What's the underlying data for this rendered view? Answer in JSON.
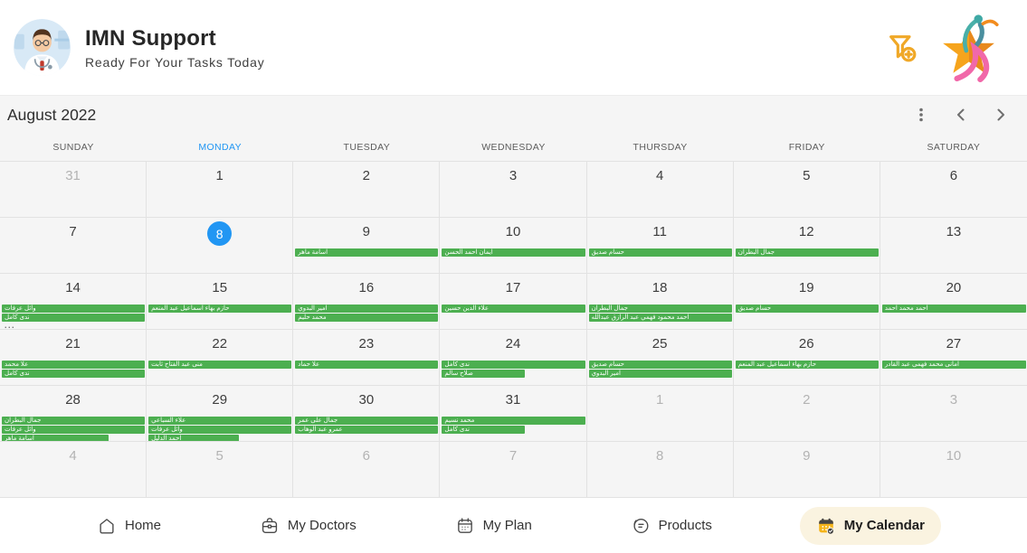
{
  "header": {
    "app_title": "IMN Support",
    "app_subtitle": "Ready For Your Tasks Today"
  },
  "calendar": {
    "month_title": "August 2022",
    "weekdays": [
      "SUNDAY",
      "MONDAY",
      "TUESDAY",
      "WEDNESDAY",
      "THURSDAY",
      "FRIDAY",
      "SATURDAY"
    ],
    "active_weekday_index": 1,
    "more_indicator": "...",
    "weeks": [
      [
        {
          "day": "31",
          "outside": true
        },
        {
          "day": "1"
        },
        {
          "day": "2"
        },
        {
          "day": "3"
        },
        {
          "day": "4"
        },
        {
          "day": "5"
        },
        {
          "day": "6"
        }
      ],
      [
        {
          "day": "7"
        },
        {
          "day": "8",
          "today": true
        },
        {
          "day": "9",
          "events": [
            {
              "label": "اسامة ماهر"
            }
          ]
        },
        {
          "day": "10",
          "events": [
            {
              "label": "ايمان احمد الحسن"
            }
          ]
        },
        {
          "day": "11",
          "events": [
            {
              "label": "حسام صديق"
            }
          ]
        },
        {
          "day": "12",
          "events": [
            {
              "label": "جمال البطران"
            }
          ]
        },
        {
          "day": "13"
        }
      ],
      [
        {
          "day": "14",
          "events": [
            {
              "label": "وائل عرفات"
            },
            {
              "label": "ندى كامل"
            }
          ],
          "more": true
        },
        {
          "day": "15",
          "events": [
            {
              "label": "حازم بهاء اسماعيل عبد المنعم"
            }
          ]
        },
        {
          "day": "16",
          "events": [
            {
              "label": "امير البدوي"
            },
            {
              "label": "محمد حليم"
            }
          ]
        },
        {
          "day": "17",
          "events": [
            {
              "label": "علاء الدين حسين"
            }
          ]
        },
        {
          "day": "18",
          "events": [
            {
              "label": "جمال البطران"
            },
            {
              "label": "احمد محمود فهمي عبد الرازق عبدالله"
            }
          ]
        },
        {
          "day": "19",
          "events": [
            {
              "label": "حسام صديق"
            }
          ]
        },
        {
          "day": "20",
          "events": [
            {
              "label": "احمد محمد احمد"
            }
          ]
        }
      ],
      [
        {
          "day": "21",
          "events": [
            {
              "label": "علا محمد"
            },
            {
              "label": "ندى كامل"
            }
          ]
        },
        {
          "day": "22",
          "events": [
            {
              "label": "منى عبد الفتاح ثابت"
            }
          ]
        },
        {
          "day": "23",
          "events": [
            {
              "label": "علا حماد"
            }
          ]
        },
        {
          "day": "24",
          "events": [
            {
              "label": "ندى كامل"
            },
            {
              "label": "صلاح سالم",
              "width_pct": 57
            }
          ]
        },
        {
          "day": "25",
          "events": [
            {
              "label": "حسام صديق"
            },
            {
              "label": "امير البدوي"
            }
          ]
        },
        {
          "day": "26",
          "events": [
            {
              "label": "حازم بهاء اسماعيل عبد المنعم"
            }
          ]
        },
        {
          "day": "27",
          "events": [
            {
              "label": "امانى محمد فهمى عبد القادر"
            }
          ]
        }
      ],
      [
        {
          "day": "28",
          "events": [
            {
              "label": "جمال البطران"
            },
            {
              "label": "وائل عرفات"
            },
            {
              "label": "اسامة ماهر",
              "width_pct": 73
            }
          ]
        },
        {
          "day": "29",
          "events": [
            {
              "label": "علاء السباعي"
            },
            {
              "label": "وائل عرفات"
            },
            {
              "label": "احمد الدليل",
              "width_pct": 62
            }
          ]
        },
        {
          "day": "30",
          "events": [
            {
              "label": "جمال على عمر"
            },
            {
              "label": "عمرو عبد الوهاب"
            }
          ]
        },
        {
          "day": "31",
          "events": [
            {
              "label": "محمد نسيم"
            },
            {
              "label": "ندى كامل",
              "width_pct": 57
            }
          ]
        },
        {
          "day": "1",
          "outside": true
        },
        {
          "day": "2",
          "outside": true
        },
        {
          "day": "3",
          "outside": true
        }
      ],
      [
        {
          "day": "4",
          "outside": true
        },
        {
          "day": "5",
          "outside": true
        },
        {
          "day": "6",
          "outside": true
        },
        {
          "day": "7",
          "outside": true
        },
        {
          "day": "8",
          "outside": true
        },
        {
          "day": "9",
          "outside": true
        },
        {
          "day": "10",
          "outside": true
        }
      ]
    ]
  },
  "nav": {
    "items": [
      {
        "label": "Home",
        "icon": "home-icon",
        "active": false
      },
      {
        "label": "My Doctors",
        "icon": "doctors-bag-icon",
        "active": false
      },
      {
        "label": "My Plan",
        "icon": "plan-calendar-icon",
        "active": false
      },
      {
        "label": "Products",
        "icon": "products-icon",
        "active": false
      },
      {
        "label": "My Calendar",
        "icon": "my-calendar-icon",
        "active": true
      }
    ]
  },
  "colors": {
    "event_green": "#4CAF50",
    "today_blue": "#2196F3",
    "active_weekday_blue": "#2196F3",
    "filter_amber": "#F0A827",
    "nav_active_bg": "#FAF3E0"
  }
}
